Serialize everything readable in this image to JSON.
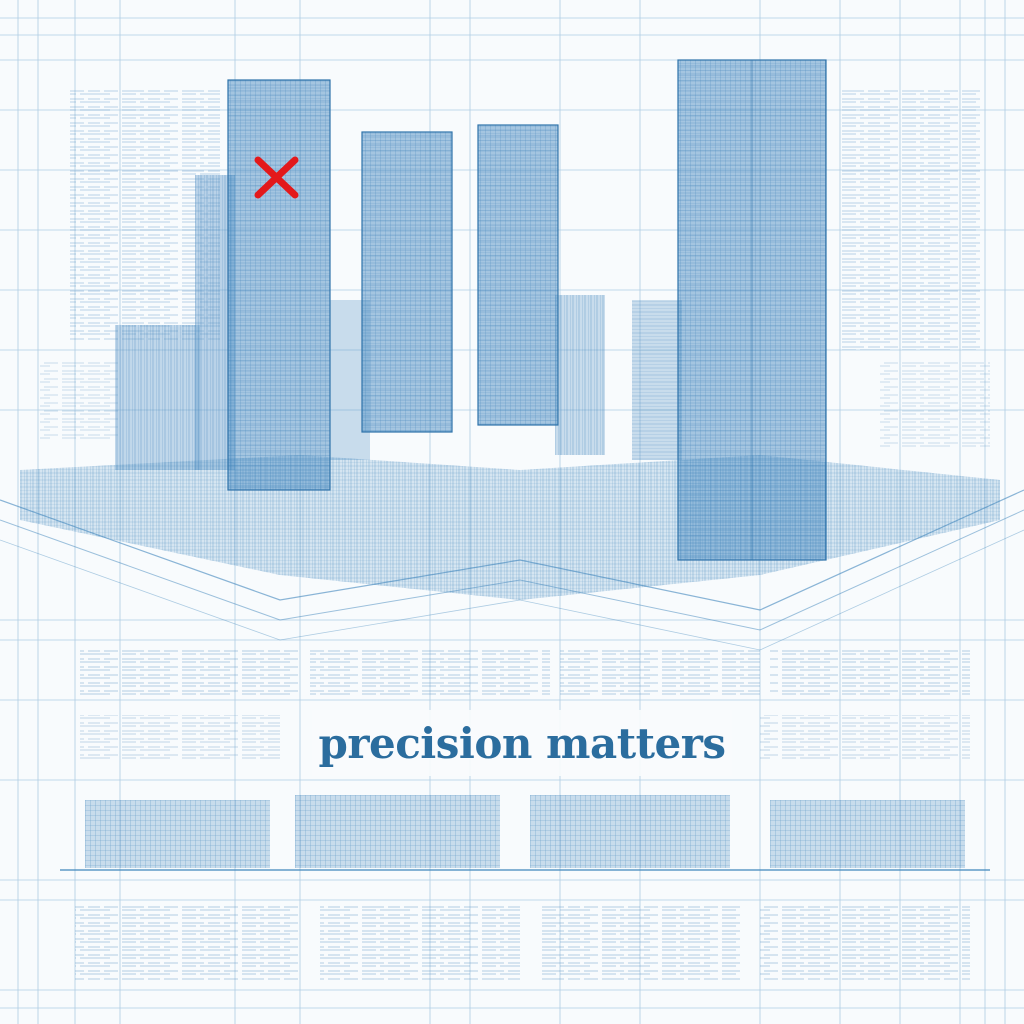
{
  "tagline": "precision matters",
  "marker": {
    "icon": "red-x-mark-icon"
  },
  "colors": {
    "background": "#f8fbfd",
    "line": "#3f86bc",
    "building_fill": "#4f8fc4",
    "tagline": "#2b6d9e",
    "marker": "#e3191b"
  }
}
